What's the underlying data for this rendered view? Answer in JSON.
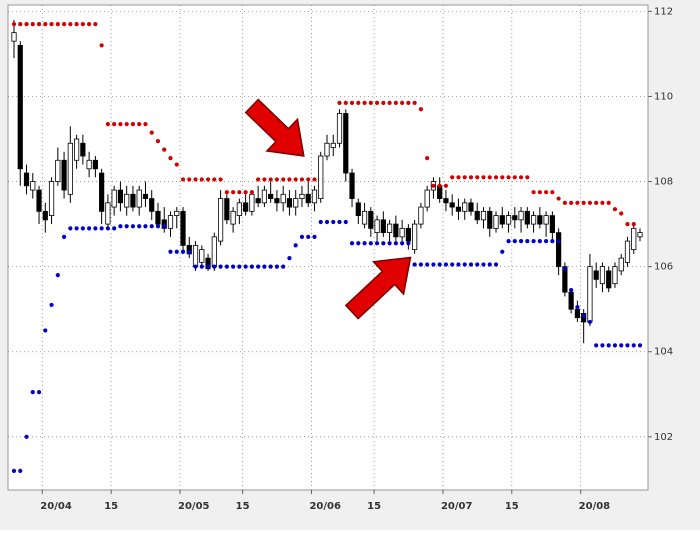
{
  "chart_data": {
    "type": "candlestick",
    "categories": [
      null,
      null,
      null,
      null,
      null,
      "20/04",
      null,
      null,
      null,
      null,
      null,
      null,
      null,
      null,
      null,
      null,
      "15",
      null,
      null,
      null,
      null,
      null,
      null,
      null,
      null,
      null,
      null,
      "20/05",
      null,
      null,
      null,
      null,
      null,
      null,
      null,
      null,
      null,
      "15",
      null,
      null,
      null,
      null,
      null,
      null,
      null,
      null,
      null,
      null,
      "20/06",
      null,
      null,
      null,
      null,
      null,
      null,
      null,
      null,
      null,
      "15",
      null,
      null,
      null,
      null,
      null,
      null,
      null,
      null,
      null,
      null,
      "20/07",
      null,
      null,
      null,
      null,
      null,
      null,
      null,
      null,
      null,
      null,
      "15",
      null,
      null,
      null,
      null,
      null,
      null,
      null,
      null,
      null,
      null,
      "20/08",
      null,
      null,
      null,
      null,
      null,
      null,
      null,
      null,
      null
    ],
    "open": [
      111.3,
      111.2,
      108.2,
      107.8,
      107.8,
      107.3,
      107.2,
      108.0,
      108.5,
      107.7,
      108.5,
      108.9,
      108.3,
      108.5,
      108.2,
      107.0,
      107.4,
      107.8,
      107.4,
      107.7,
      107.4,
      107.7,
      107.6,
      107.3,
      107.1,
      106.9,
      107.2,
      107.3,
      106.5,
      106.0,
      106.1,
      106.2,
      106.0,
      106.6,
      107.6,
      107.0,
      107.2,
      107.5,
      107.3,
      107.6,
      107.5,
      107.7,
      107.6,
      107.5,
      107.6,
      107.4,
      107.6,
      107.7,
      107.5,
      107.6,
      108.6,
      108.8,
      108.9,
      109.6,
      108.2,
      107.5,
      107.0,
      107.3,
      106.8,
      107.1,
      106.8,
      107.0,
      106.7,
      106.9,
      106.4,
      107.0,
      107.4,
      107.8,
      107.9,
      107.6,
      107.5,
      107.4,
      107.3,
      107.5,
      107.3,
      107.1,
      107.3,
      106.9,
      107.2,
      107.0,
      107.2,
      107.1,
      107.3,
      107.0,
      107.2,
      107.0,
      107.2,
      106.8,
      106.0,
      105.4,
      105.0,
      104.9,
      104.7,
      105.9,
      105.6,
      105.9,
      105.6,
      105.9,
      106.1,
      106.4,
      106.7
    ],
    "high": [
      111.8,
      111.3,
      108.4,
      108.2,
      107.9,
      107.5,
      108.1,
      108.8,
      108.7,
      109.3,
      109.1,
      109.1,
      108.7,
      108.6,
      108.3,
      107.7,
      107.9,
      108.0,
      107.9,
      107.9,
      107.9,
      108.0,
      107.8,
      107.5,
      107.4,
      107.3,
      107.4,
      107.4,
      106.7,
      106.6,
      106.5,
      106.3,
      106.8,
      107.8,
      107.7,
      107.4,
      107.6,
      107.7,
      107.8,
      107.9,
      107.9,
      108.0,
      107.8,
      107.9,
      107.8,
      107.8,
      107.9,
      108.0,
      107.9,
      108.7,
      109.1,
      109.1,
      109.7,
      109.7,
      108.3,
      107.6,
      107.5,
      107.4,
      107.2,
      107.3,
      107.1,
      107.2,
      107.1,
      107.0,
      107.1,
      107.5,
      107.9,
      108.1,
      108.1,
      107.8,
      107.7,
      107.6,
      107.6,
      107.6,
      107.5,
      107.4,
      107.4,
      107.3,
      107.4,
      107.3,
      107.4,
      107.4,
      107.4,
      107.3,
      107.4,
      107.3,
      107.3,
      106.9,
      106.1,
      105.5,
      105.2,
      105.0,
      106.3,
      106.1,
      106.1,
      106.0,
      106.1,
      106.3,
      106.7,
      107.0,
      106.9
    ],
    "low": [
      110.9,
      107.9,
      107.7,
      107.6,
      107.0,
      106.8,
      107.0,
      107.9,
      107.6,
      107.5,
      108.3,
      108.4,
      108.1,
      108.1,
      107.0,
      106.9,
      107.2,
      107.3,
      107.2,
      107.3,
      107.2,
      107.4,
      107.1,
      106.9,
      106.8,
      106.7,
      106.9,
      106.3,
      106.2,
      105.9,
      106.0,
      105.9,
      105.9,
      106.5,
      107.0,
      106.8,
      107.0,
      107.2,
      107.2,
      107.4,
      107.4,
      107.5,
      107.3,
      107.3,
      107.2,
      107.2,
      107.4,
      107.4,
      107.3,
      107.5,
      108.5,
      108.6,
      108.8,
      108.0,
      107.4,
      107.0,
      106.9,
      106.7,
      106.6,
      106.7,
      106.5,
      106.6,
      106.5,
      106.4,
      106.3,
      106.9,
      107.3,
      107.6,
      107.5,
      107.3,
      107.2,
      107.1,
      107.1,
      107.2,
      107.0,
      106.9,
      106.7,
      106.8,
      106.9,
      106.8,
      106.9,
      106.8,
      106.9,
      106.8,
      106.9,
      106.7,
      106.6,
      105.8,
      105.3,
      104.9,
      104.7,
      104.2,
      104.6,
      105.5,
      105.4,
      105.4,
      105.5,
      105.8,
      106.0,
      106.3,
      106.6
    ],
    "close": [
      111.5,
      108.3,
      107.9,
      108.0,
      107.3,
      107.1,
      108.0,
      108.5,
      107.8,
      108.9,
      109.0,
      108.6,
      108.5,
      108.3,
      107.3,
      107.5,
      107.8,
      107.5,
      107.7,
      107.4,
      107.8,
      107.6,
      107.3,
      107.0,
      106.9,
      107.2,
      107.3,
      106.5,
      106.3,
      106.5,
      106.4,
      105.95,
      106.7,
      107.6,
      107.1,
      107.3,
      107.5,
      107.3,
      107.7,
      107.5,
      107.8,
      107.6,
      107.5,
      107.7,
      107.4,
      107.6,
      107.7,
      107.5,
      107.8,
      108.6,
      108.9,
      108.9,
      109.6,
      108.2,
      107.6,
      107.2,
      107.3,
      106.9,
      107.1,
      106.8,
      107.0,
      106.7,
      106.9,
      106.6,
      107.0,
      107.4,
      107.8,
      108.0,
      107.6,
      107.5,
      107.4,
      107.3,
      107.5,
      107.3,
      107.1,
      107.3,
      106.9,
      107.2,
      107.0,
      107.2,
      107.1,
      107.3,
      107.0,
      107.2,
      107.0,
      107.2,
      106.8,
      106.0,
      105.4,
      105.0,
      104.8,
      104.7,
      106.0,
      105.7,
      106.0,
      105.5,
      106.0,
      106.2,
      106.6,
      106.9,
      106.8
    ],
    "bands": [
      {
        "color": "#d40000",
        "values": [
          111.7,
          111.7,
          111.7,
          111.7,
          111.7,
          111.7,
          111.7,
          111.7,
          111.7,
          111.7,
          111.7,
          111.7,
          111.7,
          111.7,
          111.2,
          109.35,
          109.35,
          109.35,
          109.35,
          109.35,
          109.35,
          109.35,
          109.15,
          108.95,
          108.75,
          108.55,
          108.4,
          108.05,
          108.05,
          108.05,
          108.05,
          108.05,
          108.05,
          108.05,
          107.75,
          107.75,
          107.75,
          107.75,
          107.75,
          108.05,
          108.05,
          108.05,
          108.05,
          108.05,
          108.05,
          108.05,
          108.05,
          108.05,
          108.05,
          null,
          null,
          null,
          109.85,
          109.85,
          109.85,
          109.85,
          109.85,
          109.85,
          109.85,
          109.85,
          109.85,
          109.85,
          109.85,
          109.85,
          109.85,
          109.7,
          108.55,
          107.9,
          107.9,
          107.9,
          108.1,
          108.1,
          108.1,
          108.1,
          108.1,
          108.1,
          108.1,
          108.1,
          108.1,
          108.1,
          108.1,
          108.1,
          108.1,
          107.75,
          107.75,
          107.75,
          107.75,
          107.6,
          107.5,
          107.5,
          107.5,
          107.5,
          107.5,
          107.5,
          107.5,
          107.5,
          107.35,
          107.25,
          107.0,
          107.0,
          null
        ]
      },
      {
        "color": "#0000c8",
        "values": [
          101.2,
          101.2,
          102.0,
          103.05,
          103.05,
          104.5,
          105.1,
          105.8,
          106.7,
          106.9,
          106.9,
          106.9,
          106.9,
          106.9,
          106.9,
          106.9,
          106.9,
          106.95,
          106.95,
          106.95,
          106.95,
          106.95,
          106.95,
          106.95,
          106.95,
          106.35,
          106.35,
          106.35,
          106.35,
          106.0,
          106.0,
          106.0,
          106.0,
          106.0,
          106.0,
          106.0,
          106.0,
          106.0,
          106.0,
          106.0,
          106.0,
          106.0,
          106.0,
          106.0,
          106.2,
          106.5,
          106.7,
          106.7,
          106.7,
          107.05,
          107.05,
          107.05,
          107.05,
          107.05,
          106.55,
          106.55,
          106.55,
          106.55,
          106.55,
          106.55,
          106.55,
          106.55,
          106.55,
          106.55,
          106.05,
          106.05,
          106.05,
          106.05,
          106.05,
          106.05,
          106.05,
          106.05,
          106.05,
          106.05,
          106.05,
          106.05,
          106.05,
          106.05,
          106.35,
          106.6,
          106.6,
          106.6,
          106.6,
          106.6,
          106.6,
          106.6,
          106.6,
          106.6,
          105.95,
          105.45,
          105.05,
          104.85,
          104.7,
          104.15,
          104.15,
          104.15,
          104.15,
          104.15,
          104.15,
          104.15,
          104.15
        ]
      }
    ],
    "up_color": "#ffffff",
    "down_color": "#000000",
    "ylim": [
      100.75,
      112.15
    ],
    "yticks": [
      102,
      104,
      106,
      108,
      110,
      112
    ],
    "grid": true
  }
}
